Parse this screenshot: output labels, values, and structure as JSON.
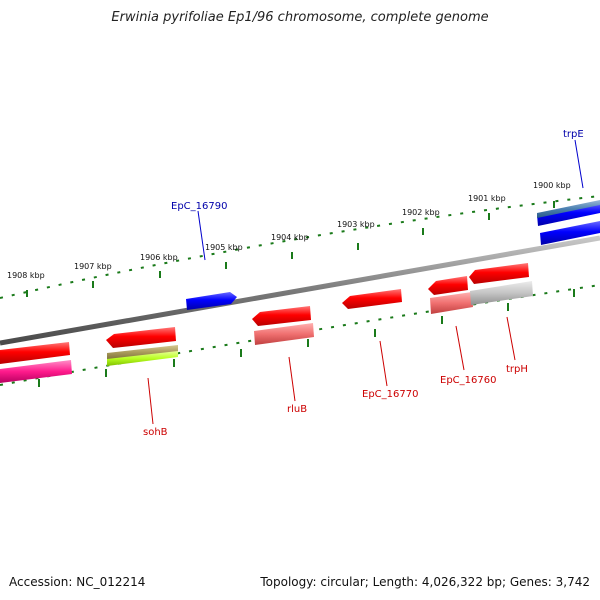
{
  "title": "Erwinia pyrifoliae Ep1/96 chromosome, complete genome",
  "footer": {
    "accession": "Accession: NC_012214",
    "summary": "Topology: circular; Length: 4,026,322 bp; Genes: 3,742"
  },
  "colors": {
    "backbone": "#7a7a7a",
    "tick": "#1a7a1a",
    "red_gene": "#ff0000",
    "blue_gene": "#0000ff",
    "label_red": "#cc0000",
    "label_blue": "#0000aa"
  },
  "ticks": [
    "1908 kbp",
    "1907 kbp",
    "1906 kbp",
    "1905 kbp",
    "1904 kbp",
    "1903 kbp",
    "1902 kbp",
    "1901 kbp",
    "1900 kbp"
  ],
  "gene_labels": {
    "trpE": "trpE",
    "EpC_16790": "EpC_16790",
    "sohB": "sohB",
    "rluB": "rluB",
    "EpC_16770": "EpC_16770",
    "EpC_16760": "EpC_16760",
    "trpH": "trpH"
  }
}
